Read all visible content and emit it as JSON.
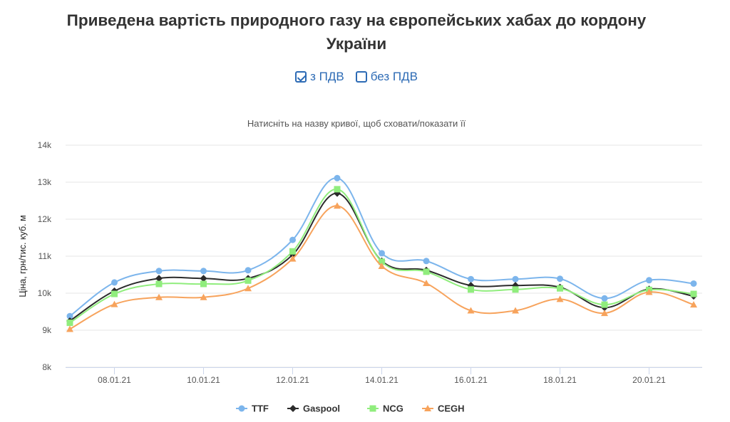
{
  "header": {
    "title_line1": "Приведена вартість природного газу на європейських хабах до кордону",
    "title_line2": "України"
  },
  "toggles": [
    {
      "label": "з ПДВ",
      "checked": true
    },
    {
      "label": "без ПДВ",
      "checked": false
    }
  ],
  "chart_data": {
    "type": "line",
    "subtitle": "Натисніть на назву кривої, щоб сховати/показати її",
    "ylabel": "Ціна, грн/тис. куб. м",
    "xlabel": "",
    "ylim": [
      8000,
      14000
    ],
    "yticks": [
      "8k",
      "9k",
      "10k",
      "11k",
      "12k",
      "13k",
      "14k"
    ],
    "x": [
      "07.01.21",
      "08.01.21",
      "09.01.21",
      "10.01.21",
      "11.01.21",
      "12.01.21",
      "13.01.21",
      "14.01.21",
      "15.01.21",
      "16.01.21",
      "17.01.21",
      "18.01.21",
      "19.01.21",
      "20.01.21",
      "21.01.21"
    ],
    "xtick_labels": [
      "08.01.21",
      "10.01.21",
      "12.01.21",
      "14.01.21",
      "16.01.21",
      "18.01.21",
      "20.01.21"
    ],
    "grid": true,
    "legend": "bottom",
    "series": [
      {
        "name": "TTF",
        "color": "#7cb5ec",
        "marker": "circle",
        "values": [
          9380,
          10290,
          10600,
          10600,
          10620,
          11440,
          13110,
          11080,
          10870,
          10380,
          10380,
          10390,
          9860,
          10350,
          10260
        ]
      },
      {
        "name": "Gaspool",
        "color": "#2b2b2b",
        "marker": "diamond",
        "values": [
          9250,
          10060,
          10400,
          10400,
          10400,
          11040,
          12700,
          10870,
          10620,
          10210,
          10210,
          10160,
          9610,
          10110,
          9920
        ]
      },
      {
        "name": "NCG",
        "color": "#90ed7d",
        "marker": "square",
        "values": [
          9200,
          9980,
          10250,
          10250,
          10340,
          11130,
          12810,
          10850,
          10580,
          10100,
          10100,
          10130,
          9690,
          10090,
          9980
        ]
      },
      {
        "name": "CEGH",
        "color": "#f7a35c",
        "marker": "triangle",
        "values": [
          9030,
          9700,
          9890,
          9890,
          10130,
          10930,
          12360,
          10730,
          10270,
          9530,
          9530,
          9840,
          9460,
          10030,
          9690
        ]
      }
    ]
  }
}
